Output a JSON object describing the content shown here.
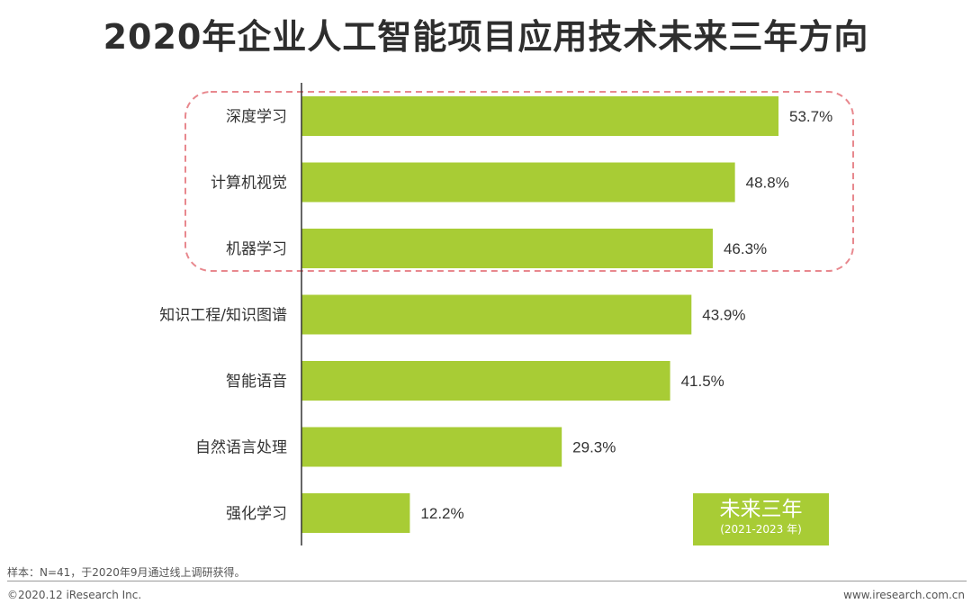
{
  "chart_data": {
    "type": "bar",
    "orientation": "horizontal",
    "title": "2020年企业人工智能项目应用技术未来三年方向",
    "categories": [
      "深度学习",
      "计算机视觉",
      "机器学习",
      "知识工程/知识图谱",
      "智能语音",
      "自然语言处理",
      "强化学习"
    ],
    "values": [
      53.7,
      48.8,
      46.3,
      43.9,
      41.5,
      29.3,
      12.2
    ],
    "value_labels": [
      "53.7%",
      "48.8%",
      "46.3%",
      "43.9%",
      "41.5%",
      "29.3%",
      "12.2%"
    ],
    "unit": "%",
    "highlighted_categories": [
      "深度学习",
      "计算机视觉",
      "机器学习"
    ],
    "highlight_style": "dashed rounded box",
    "legend": {
      "label": "未来三年",
      "sublabel": "(2021-2023 年)",
      "placement": "bottom-right"
    },
    "grid": false,
    "colors": {
      "bar": "#a8cc35",
      "highlight_border": "#e8888e",
      "axis": "#333333"
    }
  },
  "footer": {
    "sample_note": "样本：N=41，于2020年9月通过线上调研获得。",
    "copyright": "©2020.12 iResearch Inc.",
    "website": "www.iresearch.com.cn"
  }
}
